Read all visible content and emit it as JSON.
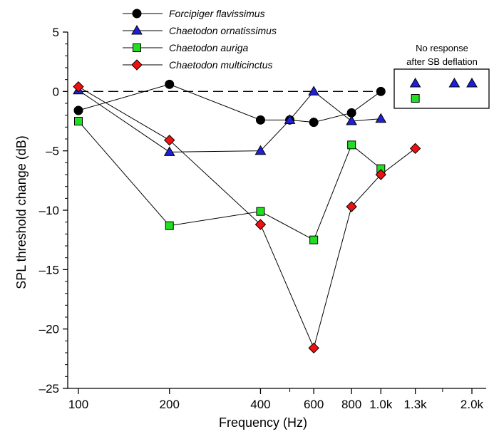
{
  "chart_data": {
    "type": "line",
    "title": "",
    "xlabel": "Frequency (Hz)",
    "ylabel": "SPL threshold change (dB)",
    "x_scale": "log",
    "xlim": [
      90,
      2000
    ],
    "ylim": [
      -25,
      5
    ],
    "x_ticks": [
      100,
      200,
      400,
      600,
      800,
      1000,
      1300,
      2000
    ],
    "x_tick_labels": [
      "100",
      "200",
      "400",
      "600",
      "800",
      "1.0k",
      "1.3k",
      "2.0k"
    ],
    "y_ticks": [
      5,
      0,
      -5,
      -10,
      -15,
      -20,
      -25
    ],
    "y_tick_labels": [
      "5",
      "0",
      "–5",
      "–10",
      "–15",
      "–20",
      "–25"
    ],
    "reference_line": {
      "y": 0,
      "style": "dashed"
    },
    "legend_position": "top-center",
    "series": [
      {
        "name": "Forcipiger flavissimus",
        "marker": "circle",
        "color": "#000000",
        "points": [
          [
            100,
            -1.6
          ],
          [
            200,
            0.6
          ],
          [
            400,
            -2.4
          ],
          [
            500,
            -2.4
          ],
          [
            600,
            -2.6
          ],
          [
            800,
            -1.8
          ],
          [
            1000,
            0.0
          ]
        ]
      },
      {
        "name": "Chaetodon ornatissimus",
        "marker": "triangle",
        "color": "#1f1fd6",
        "points": [
          [
            100,
            0.1
          ],
          [
            200,
            -5.1
          ],
          [
            400,
            -5.0
          ],
          [
            500,
            -2.4
          ],
          [
            600,
            0.0
          ],
          [
            800,
            -2.5
          ],
          [
            1000,
            -2.3
          ]
        ]
      },
      {
        "name": "Chaetodon auriga",
        "marker": "square",
        "color": "#22dd22",
        "points": [
          [
            100,
            -2.5
          ],
          [
            200,
            -11.3
          ],
          [
            400,
            -10.1
          ],
          [
            600,
            -12.5
          ],
          [
            800,
            -4.5
          ],
          [
            1000,
            -6.5
          ]
        ]
      },
      {
        "name": "Chaetodon multicinctus",
        "marker": "diamond",
        "color": "#ee1111",
        "points": [
          [
            100,
            0.4
          ],
          [
            200,
            -4.1
          ],
          [
            400,
            -11.2
          ],
          [
            600,
            -21.6
          ],
          [
            800,
            -9.7
          ],
          [
            1000,
            -7.0
          ],
          [
            1300,
            -4.8
          ]
        ]
      }
    ],
    "no_response_note": {
      "label_line1": "No response",
      "label_line2": "after SB deflation",
      "entries": [
        {
          "series": "Chaetodon ornatissimus",
          "marker": "triangle",
          "x": [
            1300,
            1750,
            2000
          ]
        },
        {
          "series": "Chaetodon auriga",
          "marker": "square",
          "x": [
            1300
          ]
        }
      ]
    }
  }
}
